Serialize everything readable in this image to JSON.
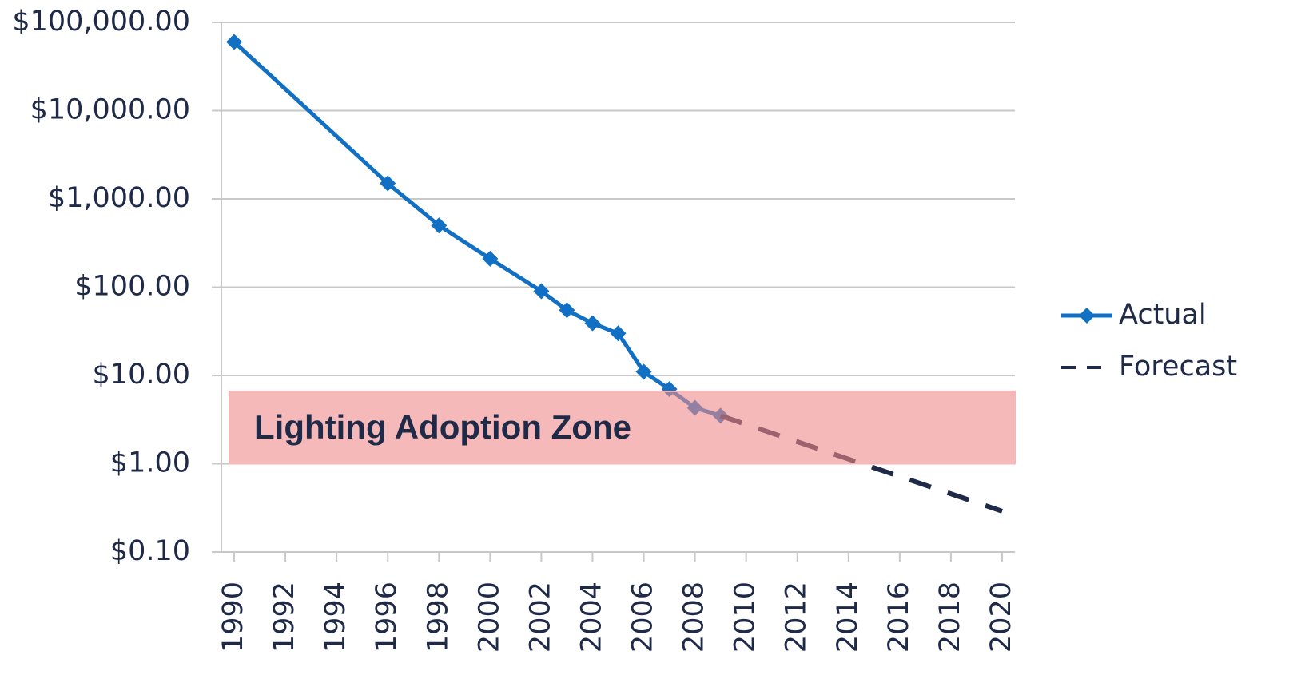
{
  "chart_data": {
    "type": "line",
    "annotation": {
      "label": "Lighting Adoption Zone",
      "range": [
        1,
        6.6
      ],
      "color": "#f08a8a"
    },
    "series": [
      {
        "name": "Actual",
        "color": "#1170c4",
        "style": "solid",
        "marker": "diamond",
        "x": [
          1990,
          1996,
          1998,
          2000,
          2002,
          2003,
          2004,
          2005,
          2006,
          2007,
          2008,
          2009
        ],
        "values": [
          60000,
          1500,
          500,
          210,
          90,
          55,
          39,
          30,
          11,
          7,
          4.3,
          3.5
        ]
      },
      {
        "name": "Forecast",
        "color": "#1f2a48",
        "style": "dashed",
        "x": [
          2009,
          2020
        ],
        "values": [
          3.5,
          0.29
        ]
      }
    ],
    "ylog": true,
    "ylim": [
      0.1,
      100000
    ],
    "yticks": [
      {
        "value": 0.1,
        "label": "$0.10"
      },
      {
        "value": 1,
        "label": "$1.00"
      },
      {
        "value": 10,
        "label": "$10.00"
      },
      {
        "value": 100,
        "label": "$100.00"
      },
      {
        "value": 1000,
        "label": "$1,000.00"
      },
      {
        "value": 10000,
        "label": "$10,000.00"
      },
      {
        "value": 100000,
        "label": "$100,000.00"
      }
    ],
    "xlim": [
      1989.5,
      2020.5
    ],
    "xticks": [
      1990,
      1992,
      1994,
      1996,
      1998,
      2000,
      2002,
      2004,
      2006,
      2008,
      2010,
      2012,
      2014,
      2016,
      2018,
      2020
    ],
    "grid": true,
    "legend": "right"
  }
}
